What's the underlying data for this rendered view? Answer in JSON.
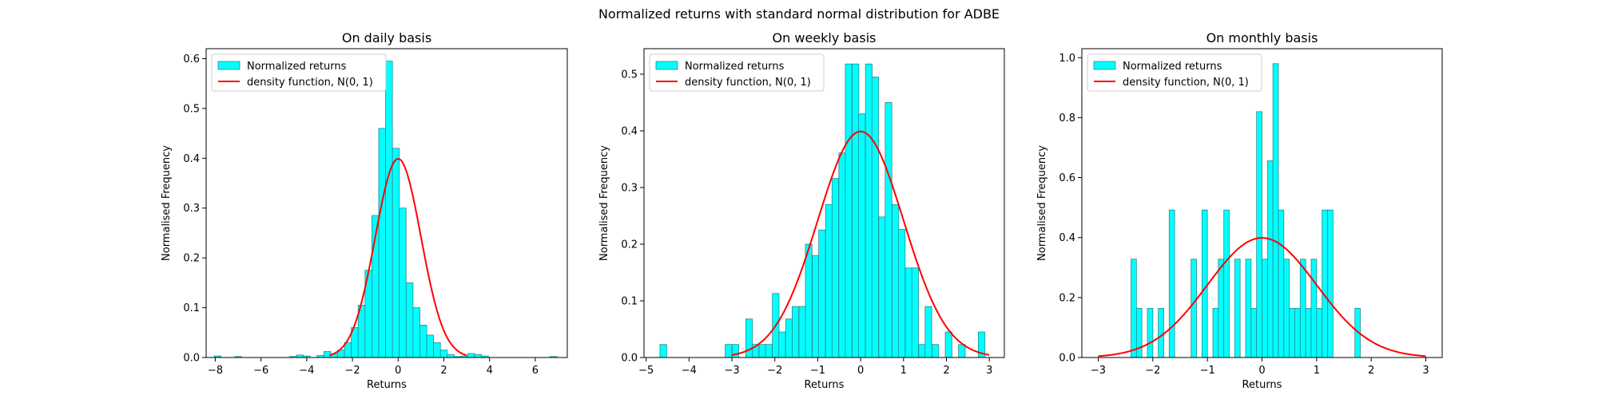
{
  "figure": {
    "suptitle": "Normalized returns with standard normal distribution for ADBE"
  },
  "colors": {
    "bar_fill": "#00ffff",
    "bar_edge": "#2a8a8a",
    "curve": "#ff0000",
    "axis": "#000000"
  },
  "chart_data": [
    {
      "type": "bar",
      "title": "On daily basis",
      "xlabel": "Returns",
      "ylabel": "Normalised Frequency",
      "xlim": [
        -8.4,
        7.4
      ],
      "ylim": [
        0,
        0.62
      ],
      "xticks": [
        -8,
        -6,
        -4,
        -2,
        0,
        2,
        4,
        6
      ],
      "yticks": [
        0.0,
        0.1,
        0.2,
        0.3,
        0.4,
        0.5,
        0.6
      ],
      "xtick_labels": [
        "−8",
        "−6",
        "−4",
        "−2",
        "0",
        "2",
        "4",
        "6"
      ],
      "ytick_labels": [
        "0.0",
        "0.1",
        "0.2",
        "0.3",
        "0.4",
        "0.5",
        "0.6"
      ],
      "bin_width": 0.3,
      "bins": [
        [
          -7.9,
          0.003
        ],
        [
          -7.0,
          0.002
        ],
        [
          -4.6,
          0.002
        ],
        [
          -4.3,
          0.005
        ],
        [
          -4.0,
          0.003
        ],
        [
          -3.4,
          0.004
        ],
        [
          -3.1,
          0.012
        ],
        [
          -2.8,
          0.007
        ],
        [
          -2.5,
          0.015
        ],
        [
          -2.2,
          0.03
        ],
        [
          -1.9,
          0.06
        ],
        [
          -1.6,
          0.105
        ],
        [
          -1.3,
          0.175
        ],
        [
          -1.0,
          0.285
        ],
        [
          -0.7,
          0.46
        ],
        [
          -0.4,
          0.595
        ],
        [
          -0.1,
          0.42
        ],
        [
          0.2,
          0.3
        ],
        [
          0.5,
          0.15
        ],
        [
          0.8,
          0.1
        ],
        [
          1.1,
          0.065
        ],
        [
          1.4,
          0.045
        ],
        [
          1.7,
          0.03
        ],
        [
          2.0,
          0.015
        ],
        [
          2.3,
          0.006
        ],
        [
          2.6,
          0.002
        ],
        [
          2.9,
          0.003
        ],
        [
          3.2,
          0.008
        ],
        [
          3.5,
          0.006
        ],
        [
          3.8,
          0.003
        ],
        [
          6.8,
          0.002
        ]
      ],
      "curve_x_range": [
        -3,
        3
      ],
      "legend": [
        "Normalized returns",
        "density function, N(0, 1)"
      ],
      "legend_loc": "upper-left"
    },
    {
      "type": "bar",
      "title": "On weekly basis",
      "xlabel": "Returns",
      "ylabel": "Normalised Frequency",
      "xlim": [
        -5.05,
        3.35
      ],
      "ylim": [
        0,
        0.545
      ],
      "xticks": [
        -5,
        -4,
        -3,
        -2,
        -1,
        0,
        1,
        2,
        3
      ],
      "yticks": [
        0.0,
        0.1,
        0.2,
        0.3,
        0.4,
        0.5
      ],
      "xtick_labels": [
        "−5",
        "−4",
        "−3",
        "−2",
        "−1",
        "0",
        "1",
        "2",
        "3"
      ],
      "ytick_labels": [
        "0.0",
        "0.1",
        "0.2",
        "0.3",
        "0.4",
        "0.5"
      ],
      "bin_width": 0.155,
      "bins": [
        [
          -4.6,
          0.023
        ],
        [
          -3.08,
          0.023
        ],
        [
          -2.92,
          0.023
        ],
        [
          -2.6,
          0.068
        ],
        [
          -2.45,
          0.023
        ],
        [
          -2.29,
          0.023
        ],
        [
          -2.14,
          0.023
        ],
        [
          -1.98,
          0.113
        ],
        [
          -1.83,
          0.045
        ],
        [
          -1.67,
          0.068
        ],
        [
          -1.52,
          0.09
        ],
        [
          -1.36,
          0.09
        ],
        [
          -1.21,
          0.2
        ],
        [
          -1.05,
          0.18
        ],
        [
          -0.9,
          0.225
        ],
        [
          -0.74,
          0.27
        ],
        [
          -0.59,
          0.316
        ],
        [
          -0.43,
          0.361
        ],
        [
          -0.28,
          0.518
        ],
        [
          -0.12,
          0.518
        ],
        [
          0.03,
          0.43
        ],
        [
          0.19,
          0.518
        ],
        [
          0.34,
          0.495
        ],
        [
          0.5,
          0.248
        ],
        [
          0.65,
          0.45
        ],
        [
          0.81,
          0.27
        ],
        [
          0.96,
          0.226
        ],
        [
          1.12,
          0.158
        ],
        [
          1.27,
          0.158
        ],
        [
          1.43,
          0.023
        ],
        [
          1.58,
          0.09
        ],
        [
          1.74,
          0.023
        ],
        [
          2.05,
          0.045
        ],
        [
          2.36,
          0.023
        ],
        [
          2.82,
          0.045
        ]
      ],
      "curve_x_range": [
        -3,
        3
      ],
      "legend": [
        "Normalized returns",
        "density function, N(0, 1)"
      ],
      "legend_loc": "upper-left"
    },
    {
      "type": "bar",
      "title": "On monthly basis",
      "xlabel": "Returns",
      "ylabel": "Normalised Frequency",
      "xlim": [
        -3.3,
        3.3
      ],
      "ylim": [
        0,
        1.03
      ],
      "xticks": [
        -3,
        -2,
        -1,
        0,
        1,
        2,
        3
      ],
      "yticks": [
        0.0,
        0.2,
        0.4,
        0.6,
        0.8,
        1.0
      ],
      "xtick_labels": [
        "−3",
        "−2",
        "−1",
        "0",
        "1",
        "2",
        "3"
      ],
      "ytick_labels": [
        "0.0",
        "0.2",
        "0.4",
        "0.6",
        "0.8",
        "1.0"
      ],
      "bin_width": 0.1,
      "bins": [
        [
          -2.35,
          0.328
        ],
        [
          -2.25,
          0.164
        ],
        [
          -2.05,
          0.164
        ],
        [
          -1.85,
          0.164
        ],
        [
          -1.65,
          0.492
        ],
        [
          -1.25,
          0.328
        ],
        [
          -1.05,
          0.492
        ],
        [
          -0.85,
          0.164
        ],
        [
          -0.75,
          0.328
        ],
        [
          -0.65,
          0.492
        ],
        [
          -0.45,
          0.328
        ],
        [
          -0.25,
          0.328
        ],
        [
          -0.15,
          0.164
        ],
        [
          -0.05,
          0.82
        ],
        [
          0.05,
          0.328
        ],
        [
          0.15,
          0.656
        ],
        [
          0.25,
          0.98
        ],
        [
          0.35,
          0.492
        ],
        [
          0.45,
          0.328
        ],
        [
          0.55,
          0.164
        ],
        [
          0.65,
          0.164
        ],
        [
          0.75,
          0.328
        ],
        [
          0.85,
          0.164
        ],
        [
          0.95,
          0.328
        ],
        [
          1.05,
          0.164
        ],
        [
          1.15,
          0.492
        ],
        [
          1.25,
          0.492
        ],
        [
          1.75,
          0.164
        ]
      ],
      "curve_x_range": [
        -3,
        3
      ],
      "legend": [
        "Normalized returns",
        "density function, N(0, 1)"
      ],
      "legend_loc": "upper-left"
    }
  ]
}
